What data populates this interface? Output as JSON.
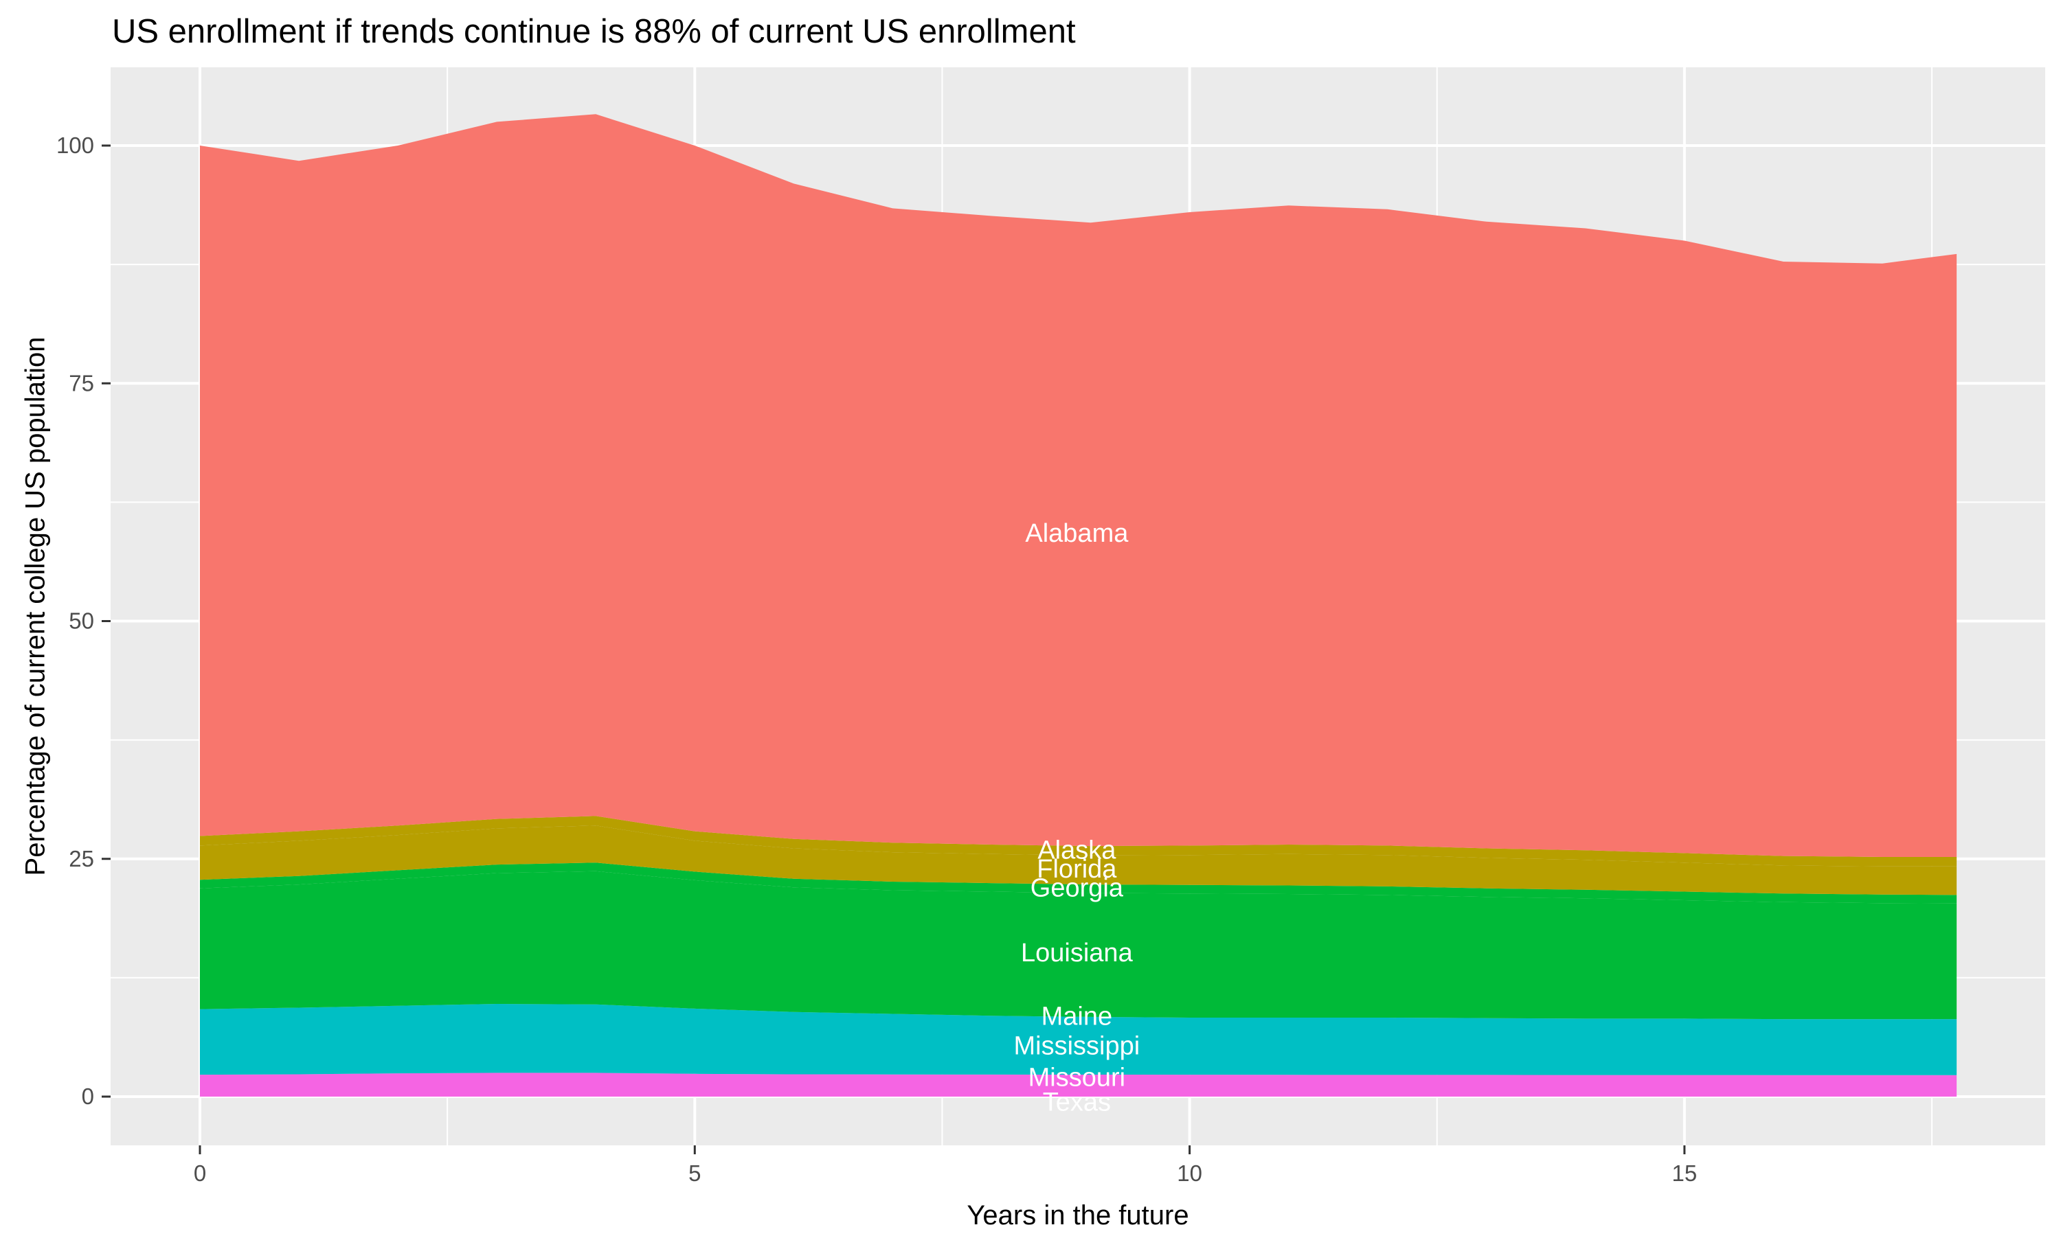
{
  "title": "US enrollment if trends continue is 88% of current US enrollment",
  "chart_data": {
    "type": "area",
    "stacked": true,
    "title": "US enrollment if trends continue is 88% of current US enrollment",
    "xlabel": "Years in the future",
    "ylabel": "Percentage of current college US population",
    "x": [
      0,
      1,
      2,
      3,
      4,
      5,
      6,
      7,
      8,
      9,
      10,
      11,
      12,
      13,
      14,
      15,
      16,
      17,
      17.75
    ],
    "xlim": [
      -0.9,
      18.64
    ],
    "ylim": [
      -5.2,
      108.2
    ],
    "x_ticks": [
      0,
      5,
      10,
      15
    ],
    "x_minor_ticks": [
      2.5,
      7.5,
      12.5,
      17.5
    ],
    "y_ticks": [
      0,
      25,
      50,
      75,
      100
    ],
    "y_minor_ticks": [
      12.5,
      37.5,
      62.5,
      87.5
    ],
    "grid": true,
    "legend_position": "none",
    "panel_background": "#EBEBEB",
    "grid_color": "#FFFFFF",
    "tick_color": "#333333",
    "tick_label_color": "#4D4D4D",
    "label_text_color": "#FFFFFF",
    "series": [
      {
        "name": "Texas",
        "color": "#F564E3",
        "values": [
          2.3,
          2.35,
          2.45,
          2.5,
          2.5,
          2.4,
          2.35,
          2.33,
          2.32,
          2.31,
          2.3,
          2.29,
          2.28,
          2.28,
          2.27,
          2.27,
          2.26,
          2.26,
          2.26
        ]
      },
      {
        "name": "Missouri",
        "color": "#F564E3",
        "values": [
          0,
          0,
          0,
          0,
          0,
          0,
          0,
          0,
          0,
          0,
          0,
          0,
          0,
          0,
          0,
          0,
          0,
          0,
          0
        ]
      },
      {
        "name": "Mississippi",
        "color": "#00BFC4",
        "values": [
          6.9,
          7.0,
          7.1,
          7.25,
          7.2,
          6.85,
          6.55,
          6.37,
          6.18,
          6.07,
          6.0,
          6.01,
          6.02,
          5.97,
          5.93,
          5.93,
          5.89,
          5.89,
          5.89
        ]
      },
      {
        "name": "Maine",
        "color": "#00BFC4",
        "values": [
          0,
          0,
          0,
          0,
          0,
          0,
          0,
          0,
          0,
          0,
          0,
          0,
          0,
          0,
          0,
          0,
          0,
          0,
          0
        ]
      },
      {
        "name": "Louisiana",
        "color": "#00BA38",
        "values": [
          12.7,
          12.95,
          13.35,
          13.75,
          14.0,
          13.5,
          13.1,
          13.0,
          13.05,
          13.02,
          13.05,
          13.0,
          12.9,
          12.75,
          12.65,
          12.45,
          12.3,
          12.2,
          12.15
        ]
      },
      {
        "name": "Georgia",
        "color": "#00BA38",
        "values": [
          0.9,
          0.9,
          0.9,
          0.9,
          0.9,
          0.9,
          0.9,
          0.9,
          0.9,
          0.9,
          0.9,
          0.9,
          0.9,
          0.9,
          0.9,
          0.9,
          0.9,
          0.9,
          0.9
        ]
      },
      {
        "name": "Florida",
        "color": "#B79F00",
        "values": [
          3.6,
          3.7,
          3.7,
          3.8,
          3.9,
          3.25,
          3.2,
          3.1,
          3.05,
          3.05,
          3.15,
          3.3,
          3.3,
          3.2,
          3.15,
          3.05,
          2.95,
          2.95,
          3.0
        ]
      },
      {
        "name": "Alaska",
        "color": "#B79F00",
        "values": [
          1.0,
          1.0,
          1.0,
          1.0,
          1.0,
          1.0,
          1.0,
          1.0,
          1.0,
          1.0,
          1.0,
          1.0,
          1.0,
          1.0,
          1.0,
          1.0,
          1.0,
          1.0,
          1.0
        ]
      },
      {
        "name": "Alabama",
        "color": "#F8766D",
        "values": [
          72.6,
          70.5,
          71.5,
          73.3,
          73.8,
          72.1,
          68.9,
          66.7,
          66.1,
          65.55,
          66.6,
          67.2,
          66.9,
          65.9,
          65.4,
          64.4,
          62.5,
          62.4,
          63.4
        ]
      }
    ],
    "totals_percent": [
      100.0,
      98.4,
      100.0,
      102.5,
      103.3,
      100.0,
      96.0,
      93.4,
      92.6,
      91.9,
      93.0,
      93.7,
      93.3,
      92.0,
      91.3,
      90.0,
      87.8,
      87.6,
      88.6
    ],
    "labels": [
      {
        "text": "Alabama",
        "x": 8.86,
        "y": 59.2
      },
      {
        "text": "Alaska",
        "x": 8.86,
        "y": 25.9
      },
      {
        "text": "Florida",
        "x": 8.86,
        "y": 23.9
      },
      {
        "text": "Georgia",
        "x": 8.86,
        "y": 21.9
      },
      {
        "text": "Louisiana",
        "x": 8.86,
        "y": 15.1
      },
      {
        "text": "Maine",
        "x": 8.86,
        "y": 8.4
      },
      {
        "text": "Mississippi",
        "x": 8.86,
        "y": 5.3
      },
      {
        "text": "Missouri",
        "x": 8.86,
        "y": 2.0
      },
      {
        "text": "Texas",
        "x": 8.86,
        "y": -0.6
      }
    ]
  }
}
